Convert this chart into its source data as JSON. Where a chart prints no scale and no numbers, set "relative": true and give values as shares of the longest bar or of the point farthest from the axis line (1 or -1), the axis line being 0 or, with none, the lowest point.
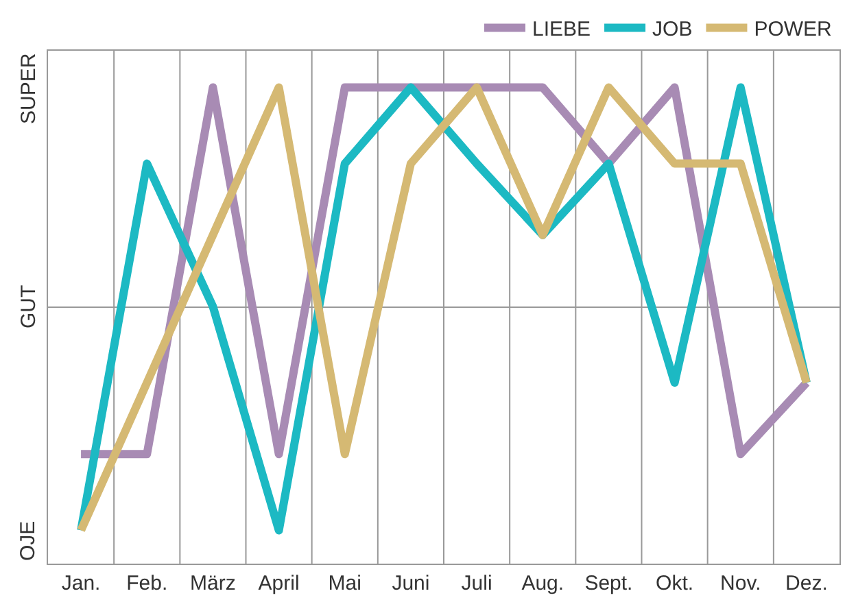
{
  "chart_data": {
    "type": "line",
    "categories": [
      "Jan.",
      "Feb.",
      "März",
      "April",
      "Mai",
      "Juni",
      "Juli",
      "Aug.",
      "Sept.",
      "Okt.",
      "Nov.",
      "Dez."
    ],
    "series": [
      {
        "name": "LIEBE",
        "color": "#a88bb4",
        "values": [
          0.23,
          0.23,
          1,
          0.23,
          1,
          1,
          1,
          1,
          0.84,
          1,
          0.23,
          0.38
        ]
      },
      {
        "name": "JOB",
        "color": "#1cb9c3",
        "values": [
          0.07,
          0.84,
          0.54,
          0.07,
          0.84,
          1,
          0.84,
          0.69,
          0.84,
          0.38,
          1,
          0.38
        ]
      },
      {
        "name": "POWER",
        "color": "#d5b973",
        "values": [
          0.07,
          0.38,
          0.69,
          1,
          0.23,
          0.84,
          1,
          0.69,
          1,
          0.84,
          0.84,
          0.38
        ]
      }
    ],
    "relative": true,
    "annotations": [
      "OJE",
      "GUT",
      "SUPER"
    ],
    "grid": true,
    "legend": "top right",
    "marker": "none",
    "line_style": "solid"
  }
}
